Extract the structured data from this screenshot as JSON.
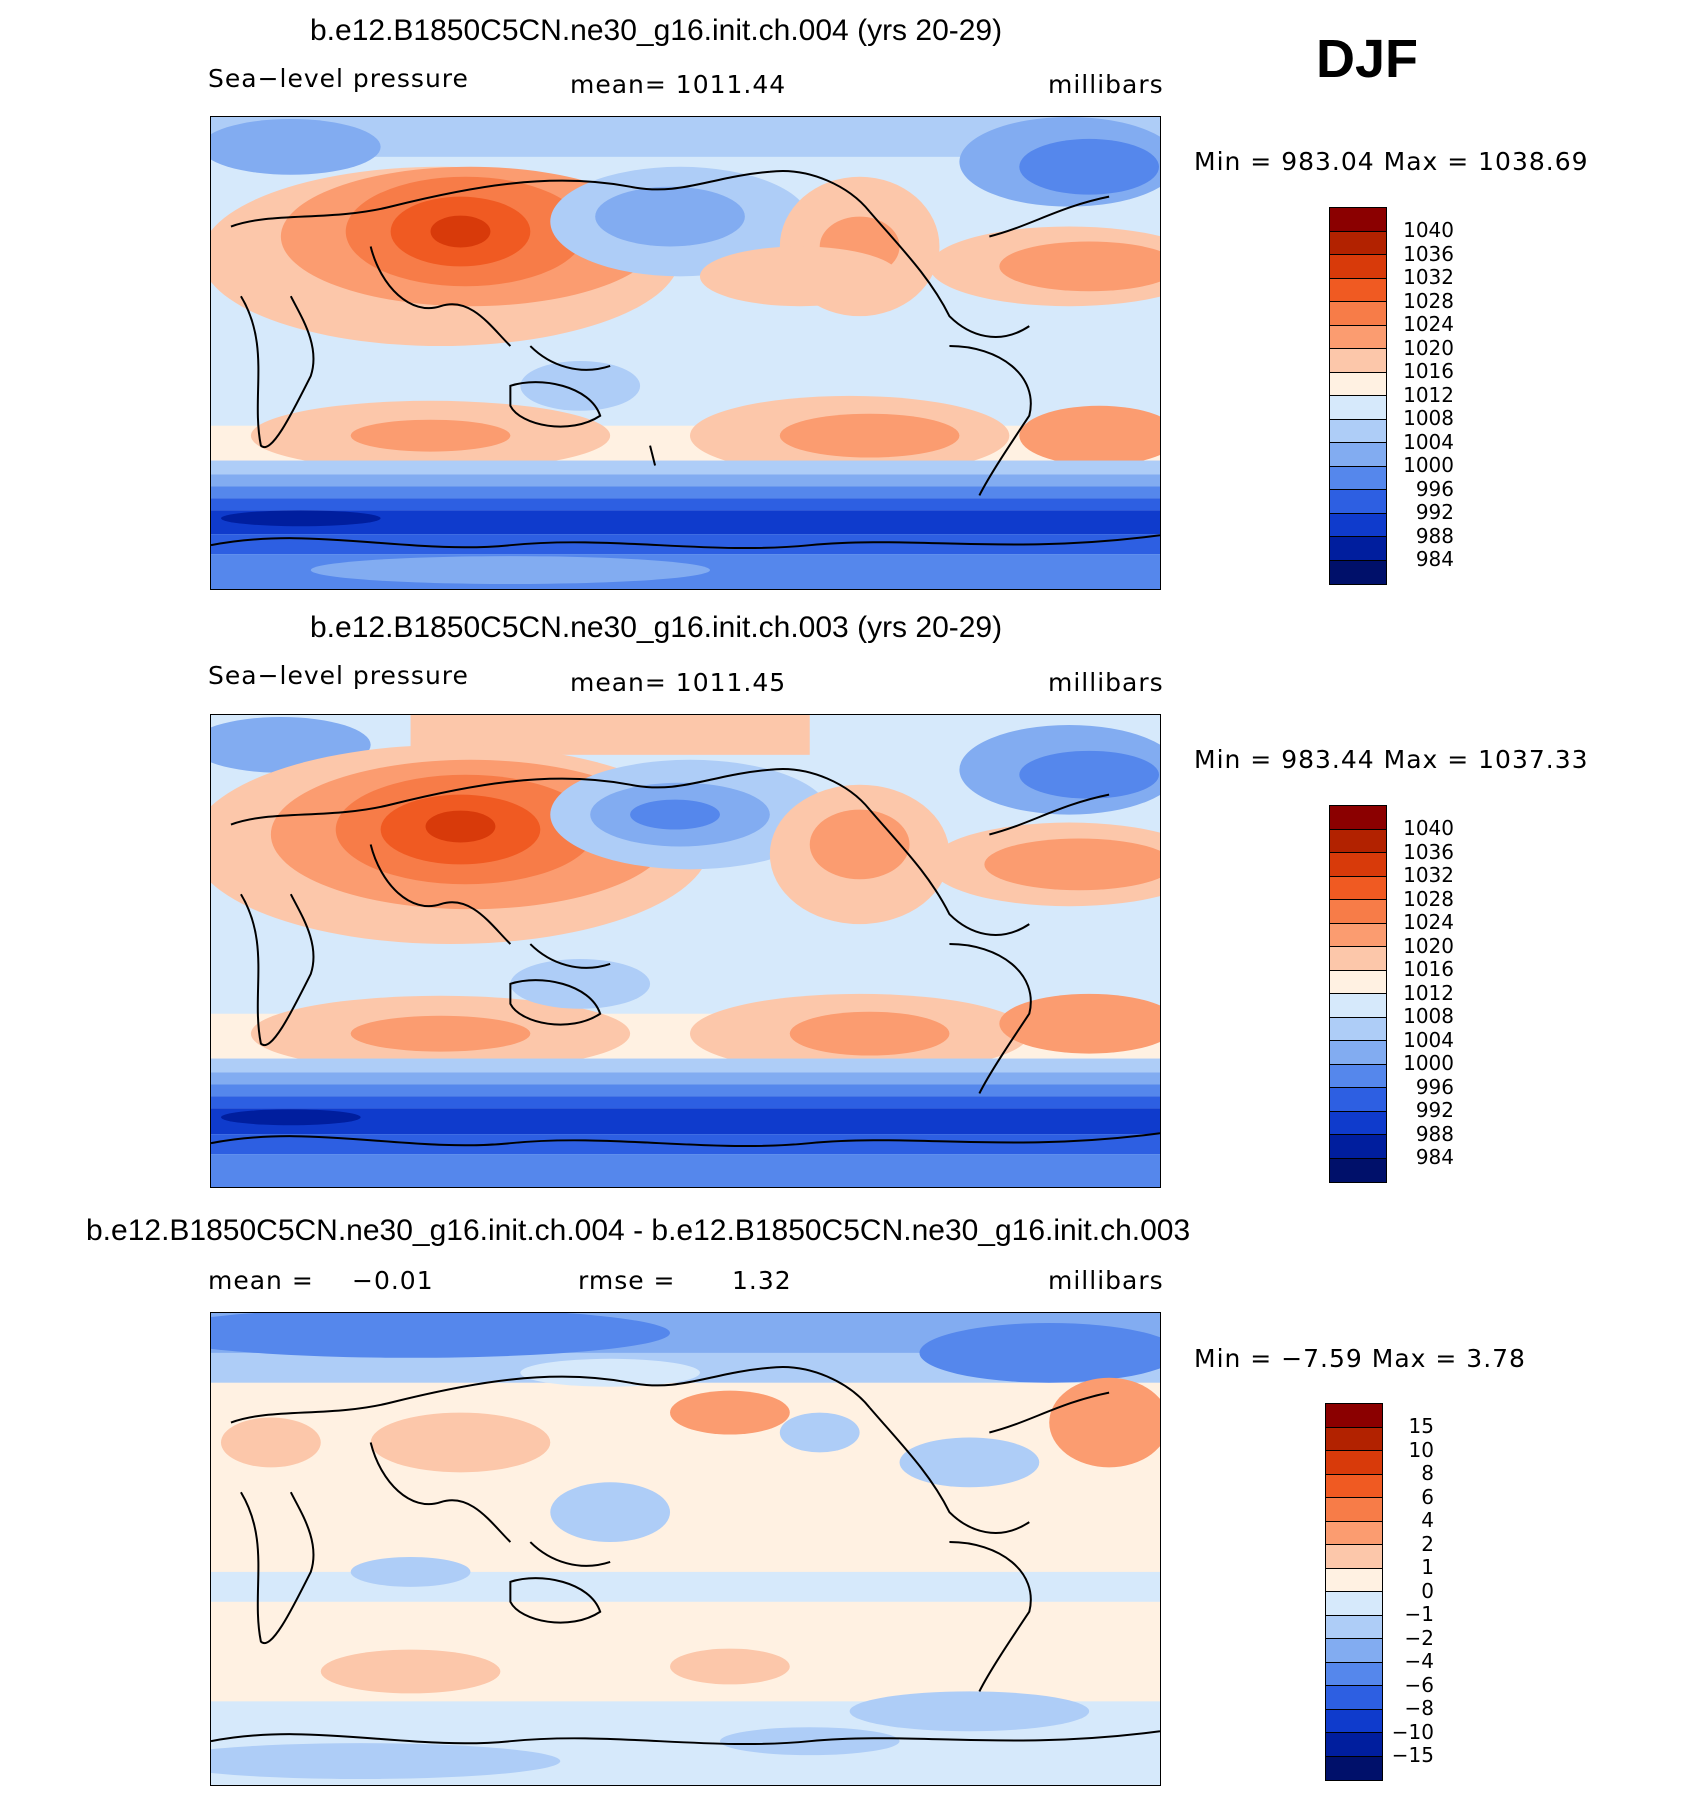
{
  "season": "DJF",
  "panels": [
    {
      "title": "b.e12.B1850C5CN.ne30_g16.init.ch.004 (yrs 20-29)",
      "field": "Sea−level pressure",
      "mean": "mean= 1011.44",
      "units": "millibars",
      "minmax": "Min = 983.04 Max = 1038.69",
      "levels": [
        "1040",
        "1036",
        "1032",
        "1028",
        "1024",
        "1020",
        "1016",
        "1012",
        "1008",
        "1004",
        "1000",
        "996",
        "992",
        "988",
        "984"
      ],
      "colors": [
        "#8b0000",
        "#b22200",
        "#d83a0a",
        "#f05a22",
        "#f77c48",
        "#fb9c70",
        "#fcc7aa",
        "#fff1e2",
        "#d6e9fb",
        "#aecdf7",
        "#82acf1",
        "#5587ec",
        "#2d5fe2",
        "#0f3bcc",
        "#001e9e",
        "#00106a"
      ]
    },
    {
      "title": "b.e12.B1850C5CN.ne30_g16.init.ch.003 (yrs 20-29)",
      "field": "Sea−level pressure",
      "mean": "mean= 1011.45",
      "units": "millibars",
      "minmax": "Min = 983.44 Max = 1037.33",
      "levels": [
        "1040",
        "1036",
        "1032",
        "1028",
        "1024",
        "1020",
        "1016",
        "1012",
        "1008",
        "1004",
        "1000",
        "996",
        "992",
        "988",
        "984"
      ],
      "colors": [
        "#8b0000",
        "#b22200",
        "#d83a0a",
        "#f05a22",
        "#f77c48",
        "#fb9c70",
        "#fcc7aa",
        "#fff1e2",
        "#d6e9fb",
        "#aecdf7",
        "#82acf1",
        "#5587ec",
        "#2d5fe2",
        "#0f3bcc",
        "#001e9e",
        "#00106a"
      ]
    },
    {
      "title": "b.e12.B1850C5CN.ne30_g16.init.ch.004 - b.e12.B1850C5CN.ne30_g16.init.ch.003",
      "mean_label": "mean =",
      "mean_value": "−0.01",
      "rmse_label": "rmse =",
      "rmse_value": "1.32",
      "units": "millibars",
      "minmax": "Min =  −7.59 Max =    3.78",
      "levels": [
        "15",
        "10",
        "8",
        "6",
        "4",
        "2",
        "1",
        "0",
        "−1",
        "−2",
        "−4",
        "−6",
        "−8",
        "−10",
        "−15"
      ],
      "colors": [
        "#8b0000",
        "#b22200",
        "#d83a0a",
        "#f05a22",
        "#f77c48",
        "#fb9c70",
        "#fcc7aa",
        "#fff1e2",
        "#d6e9fb",
        "#aecdf7",
        "#82acf1",
        "#5587ec",
        "#2d5fe2",
        "#0f3bcc",
        "#001e9e",
        "#00106a"
      ]
    }
  ]
}
